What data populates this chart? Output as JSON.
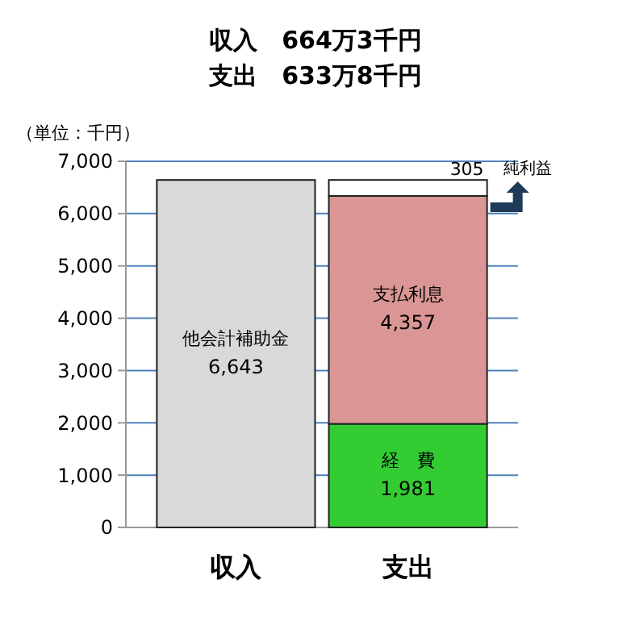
{
  "chart_data": {
    "type": "bar",
    "stacked": true,
    "title": "収入　664万3千円",
    "subtitle": "支出　633万8千円",
    "ylabel": "（単位：千円）",
    "categories": [
      "収入",
      "支出"
    ],
    "series": [
      {
        "name": "他会計補助金",
        "color": "#d9d9d9",
        "values": [
          6643,
          null
        ],
        "value_labels": [
          "6,643",
          null
        ]
      },
      {
        "name": "経　費",
        "color": "#33cc33",
        "values": [
          null,
          1981
        ],
        "value_labels": [
          null,
          "1,981"
        ]
      },
      {
        "name": "支払利息",
        "color": "#d99694",
        "values": [
          null,
          4357
        ],
        "value_labels": [
          null,
          "4,357"
        ]
      },
      {
        "name": "純利益",
        "color": "#ffffff",
        "values": [
          null,
          305
        ],
        "value_labels": [
          null,
          "305"
        ]
      }
    ],
    "ylim": [
      0,
      7000
    ],
    "yticks": [
      {
        "value": 0,
        "label": "0"
      },
      {
        "value": 1000,
        "label": "1,000"
      },
      {
        "value": 2000,
        "label": "2,000"
      },
      {
        "value": 3000,
        "label": "3,000"
      },
      {
        "value": 4000,
        "label": "4,000"
      },
      {
        "value": 5000,
        "label": "5,000"
      },
      {
        "value": 6000,
        "label": "6,000"
      },
      {
        "value": 7000,
        "label": "7,000"
      }
    ],
    "grid": "y"
  }
}
